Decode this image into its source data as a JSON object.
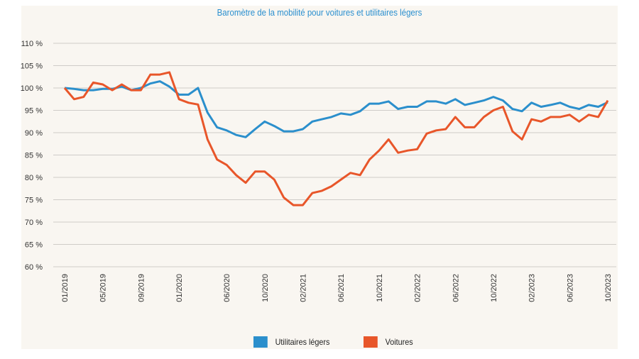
{
  "chart_data": {
    "type": "line",
    "title": "Baromètre de la mobilité pour voitures et utilitaires légers",
    "xlabel": "",
    "ylabel": "",
    "ylim": [
      60,
      110
    ],
    "yticks": [
      "110 %",
      "105 %",
      "100 %",
      "95 %",
      "90 %",
      "85 %",
      "80 %",
      "75 %",
      "70 %",
      "65 %",
      "60 %"
    ],
    "xtick_labels": [
      "01/2019",
      "05/2019",
      "09/2019",
      "01/2020",
      "06/2020",
      "10/2020",
      "02/2021",
      "06/2021",
      "10/2021",
      "02/2022",
      "06/2022",
      "10/2022",
      "02/2023",
      "06/2023",
      "10/2023"
    ],
    "x_start": "01/2019",
    "x_end": "10/2023",
    "grid": "horizontal",
    "legend": "bottom",
    "series": [
      {
        "name": "Utilitaires légers",
        "color": "#2b8fcc",
        "values": [
          100,
          99.8,
          99.5,
          99.5,
          99.8,
          99.8,
          100.3,
          99.5,
          100,
          101,
          101.5,
          100.3,
          98.5,
          98.5,
          100,
          94.5,
          91.2,
          90.5,
          89.5,
          89,
          90.8,
          92.5,
          91.5,
          90.3,
          90.3,
          90.8,
          92.5,
          93,
          93.5,
          94.3,
          94,
          94.8,
          96.5,
          96.5,
          97,
          95.3,
          95.8,
          95.8,
          97,
          97,
          96.5,
          97.5,
          96.2,
          96.7,
          97.2,
          98,
          97.2,
          95.3,
          94.8,
          96.7,
          95.8,
          96.2,
          96.7,
          95.8,
          95.3,
          96.2,
          95.8,
          96.8
        ]
      },
      {
        "name": "Voitures",
        "color": "#e8562a",
        "values": [
          100,
          97.5,
          98,
          101.2,
          100.8,
          99.5,
          100.8,
          99.5,
          99.5,
          103,
          103,
          103.5,
          97.5,
          96.7,
          96.3,
          88.5,
          84,
          82.8,
          80.5,
          78.8,
          81.3,
          81.3,
          79.5,
          75.5,
          73.8,
          73.8,
          76.5,
          77,
          78,
          79.5,
          81,
          80.5,
          84,
          86,
          88.5,
          85.5,
          86,
          86.3,
          89.8,
          90.5,
          90.8,
          93.5,
          91.2,
          91.2,
          93.5,
          95,
          95.8,
          90.3,
          88.5,
          93,
          92.5,
          93.5,
          93.5,
          94,
          92.5,
          94,
          93.5,
          97.2
        ]
      }
    ]
  }
}
